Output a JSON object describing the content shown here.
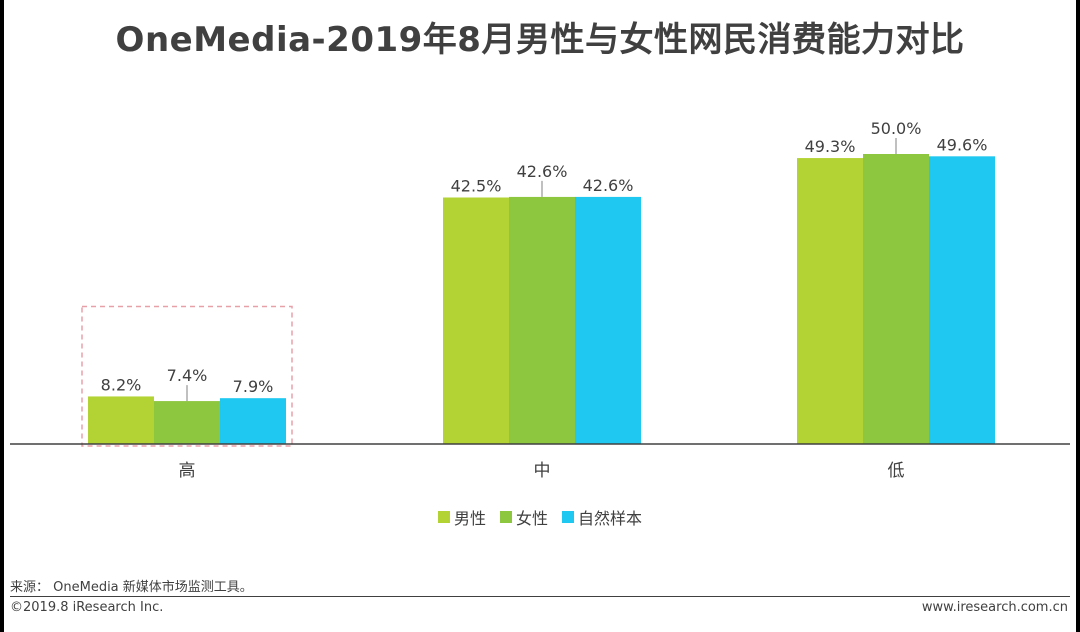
{
  "title": "OneMedia-2019年8月男性与女性网民消费能力对比",
  "chart_data": {
    "type": "bar",
    "title": "OneMedia-2019年8月男性与女性网民消费能力对比",
    "categories": [
      "高",
      "中",
      "低"
    ],
    "series": [
      {
        "name": "男性",
        "color": "#b3d335",
        "values": [
          8.2,
          42.5,
          49.3
        ],
        "labels": [
          "8.2%",
          "42.5%",
          "49.3%"
        ]
      },
      {
        "name": "女性",
        "color": "#8dc63f",
        "values": [
          7.4,
          42.6,
          50.0
        ],
        "labels": [
          "7.4%",
          "42.6%",
          "50.0%"
        ]
      },
      {
        "name": "自然样本",
        "color": "#1ec8f0",
        "values": [
          7.9,
          42.6,
          49.6
        ],
        "labels": [
          "7.9%",
          "42.6%",
          "49.6%"
        ]
      }
    ],
    "ylim": [
      0,
      50
    ],
    "xlabel": "",
    "ylabel": "",
    "highlight_category": "高",
    "highlight_color": "#e8a0a8"
  },
  "source": "来源： OneMedia 新媒体市场监测工具。",
  "copyright": "©2019.8 iResearch Inc.",
  "website": "www.iresearch.com.cn"
}
